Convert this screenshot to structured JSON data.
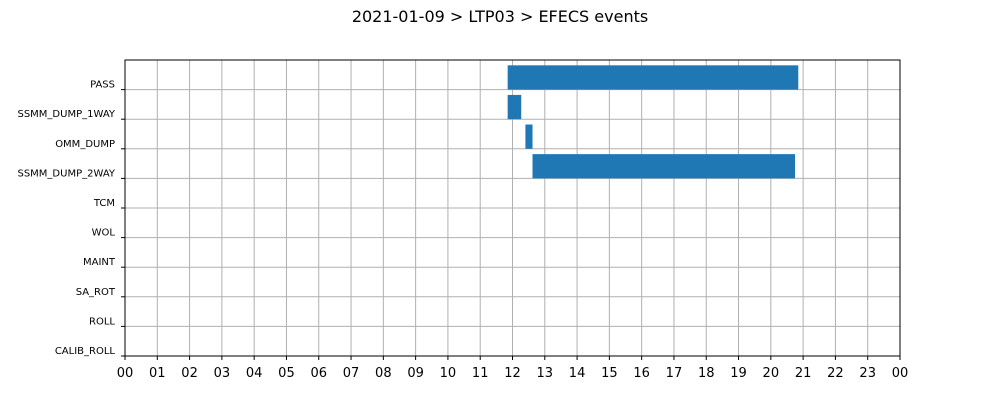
{
  "chart_data": {
    "type": "bar",
    "orientation": "horizontal-gantt",
    "title": "2021-01-09 > LTP03 > EFECS events",
    "xlabel": "",
    "ylabel": "",
    "x_ticks": [
      "00",
      "01",
      "02",
      "03",
      "04",
      "05",
      "06",
      "07",
      "08",
      "09",
      "10",
      "11",
      "12",
      "13",
      "14",
      "15",
      "16",
      "17",
      "18",
      "19",
      "20",
      "21",
      "22",
      "23",
      "00"
    ],
    "xlim": [
      0,
      24
    ],
    "categories": [
      "PASS",
      "SSMM_DUMP_1WAY",
      "OMM_DUMP",
      "SSMM_DUMP_2WAY",
      "TCM",
      "WOL",
      "MAINT",
      "SA_ROT",
      "ROLL",
      "CALIB_ROLL"
    ],
    "events": [
      {
        "category": "PASS",
        "start": 11.85,
        "end": 20.85
      },
      {
        "category": "SSMM_DUMP_1WAY",
        "start": 11.85,
        "end": 12.27
      },
      {
        "category": "OMM_DUMP",
        "start": 12.4,
        "end": 12.62
      },
      {
        "category": "SSMM_DUMP_2WAY",
        "start": 12.62,
        "end": 20.75
      }
    ],
    "grid": true,
    "legend": "none",
    "bar_color": "#1f77b4",
    "grid_color": "#b0b0b0"
  }
}
